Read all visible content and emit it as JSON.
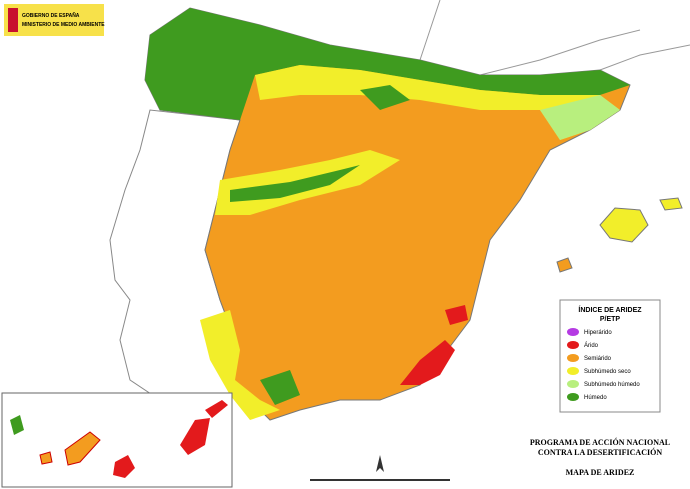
{
  "header": {
    "line1": "GOBIERNO DE ESPAÑA",
    "line2": "MINISTERIO DE MEDIO AMBIENTE"
  },
  "legend": {
    "title": "ÍNDICE DE ARIDEZ",
    "subtitle": "P/ETP",
    "items": [
      {
        "label": "Hiperárido",
        "color": "#b53be3"
      },
      {
        "label": "Árido",
        "color": "#e31a1c"
      },
      {
        "label": "Semiárido",
        "color": "#f39c1f"
      },
      {
        "label": "Subhúmedo seco",
        "color": "#f2ee2a"
      },
      {
        "label": "Subhúmedo húmedo",
        "color": "#b8ef7e"
      },
      {
        "label": "Húmedo",
        "color": "#3f9b1f"
      }
    ]
  },
  "footer": {
    "program_line1": "PROGRAMA DE ACCIÓN NACIONAL",
    "program_line2": "CONTRA LA DESERTIFICACIÓN",
    "map_title": "MAPA DE ARIDEZ"
  }
}
